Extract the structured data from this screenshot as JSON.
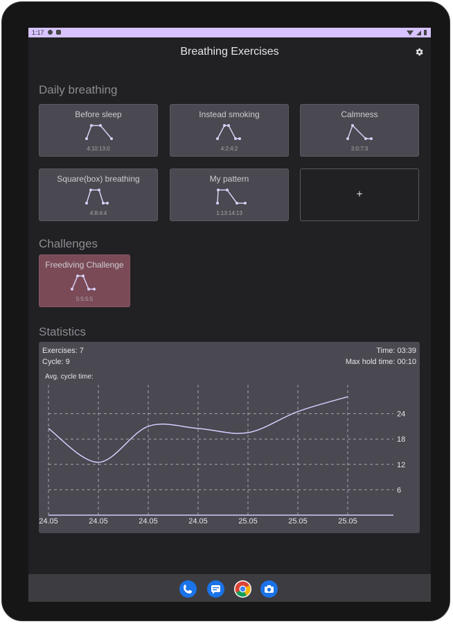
{
  "status_bar": {
    "time": "1:17"
  },
  "app": {
    "title": "Breathing Exercises",
    "settings_icon": "gear-icon"
  },
  "sections": {
    "daily": "Daily breathing",
    "challenges": "Challenges",
    "statistics": "Statistics"
  },
  "daily_cards": [
    {
      "title": "Before sleep",
      "pattern": "4:10:13:0",
      "phases": [
        4,
        10,
        13,
        0
      ]
    },
    {
      "title": "Instead smoking",
      "pattern": "4:2:4:2",
      "phases": [
        4,
        2,
        4,
        2
      ]
    },
    {
      "title": "Calmness",
      "pattern": "3:0:7:3",
      "phases": [
        3,
        0,
        7,
        3
      ]
    },
    {
      "title": "Square(box) breathing",
      "pattern": "4:8:4:4",
      "phases": [
        4,
        8,
        4,
        4
      ]
    },
    {
      "title": "My pattern",
      "pattern": "1:13:14:13",
      "phases": [
        1,
        13,
        14,
        13
      ]
    }
  ],
  "add_card": {
    "label": "+"
  },
  "challenge_cards": [
    {
      "title": "Freediving Challenge",
      "pattern": "5:5:5:5",
      "phases": [
        5,
        5,
        5,
        5
      ]
    }
  ],
  "statistics": {
    "exercises_label": "Exercises:  7",
    "cycle_label": "Cycle: 9",
    "time_label": "Time: 03:39",
    "max_hold_label": "Max hold time: 00:10",
    "chart_title": "Avg. cycle time:"
  },
  "chart_data": {
    "type": "line",
    "title": "Avg. cycle time:",
    "x": [
      "24.05",
      "24.05",
      "24.05",
      "24.05",
      "25.05",
      "25.05",
      "25.05"
    ],
    "series": [
      {
        "values": [
          20.5,
          12.5,
          21,
          20.5,
          19.5,
          24.5,
          28
        ]
      }
    ],
    "yticks": [
      6,
      12,
      18,
      24
    ],
    "ylim": [
      0,
      30
    ],
    "grid": true,
    "colors": {
      "line": "#d9ccff",
      "grid": "#a7a4ac",
      "axis": "#b3a9d6"
    }
  },
  "nav_apps": [
    "phone-icon",
    "messages-icon",
    "chrome-icon",
    "camera-icon"
  ]
}
